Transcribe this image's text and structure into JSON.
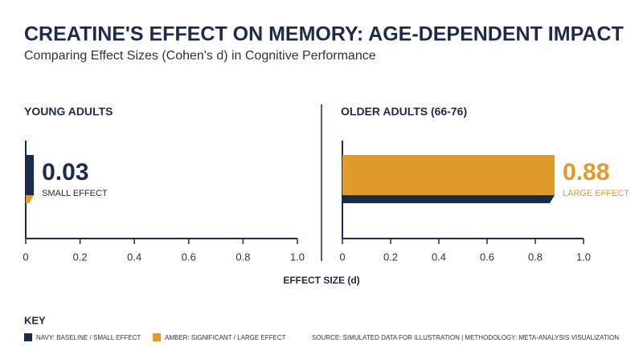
{
  "title": "CREATINE'S EFFECT ON MEMORY: AGE-DEPENDENT IMPACT",
  "subtitle": "Comparing Effect Sizes (Cohen's d) in Cognitive Performance",
  "x_label": "EFFECT SIZE (d)",
  "chart_data": [
    {
      "type": "bar",
      "orientation": "horizontal",
      "title": "YOUNG ADULTS",
      "values": [
        0.03
      ],
      "annotations": [
        "SMALL EFFECT"
      ],
      "color": "#1b2b4b",
      "shadow_color": "#e09a2c",
      "xlim": [
        0,
        1
      ],
      "xticks": [
        0,
        0.2,
        0.4,
        0.6,
        0.8,
        {
          "value": 1,
          "label": "1.0"
        }
      ]
    },
    {
      "type": "bar",
      "orientation": "horizontal",
      "title": "OLDER ADULTS (66-76)",
      "values": [
        0.88
      ],
      "annotations": [
        "LARGE EFFECT"
      ],
      "color": "#e09a2c",
      "shadow_color": "#1b2b4b",
      "xlim": [
        0,
        1
      ],
      "xticks": [
        0,
        0.2,
        0.4,
        0.6,
        0.8,
        {
          "value": 1,
          "label": "1.0"
        }
      ]
    }
  ],
  "key": {
    "title": "KEY",
    "items": [
      {
        "label": "NAVY: BASELINE / SMALL EFFECT",
        "color": "#1b2b4b"
      },
      {
        "label": "AMBER: SIGNIFICANT / LARGE EFFECT",
        "color": "#e09a2c"
      }
    ]
  },
  "source": "SOURCE: SIMULATED DATA FOR ILLUSTRATION | METHODOLOGY: META-ANALYSIS VISUALIZATION"
}
